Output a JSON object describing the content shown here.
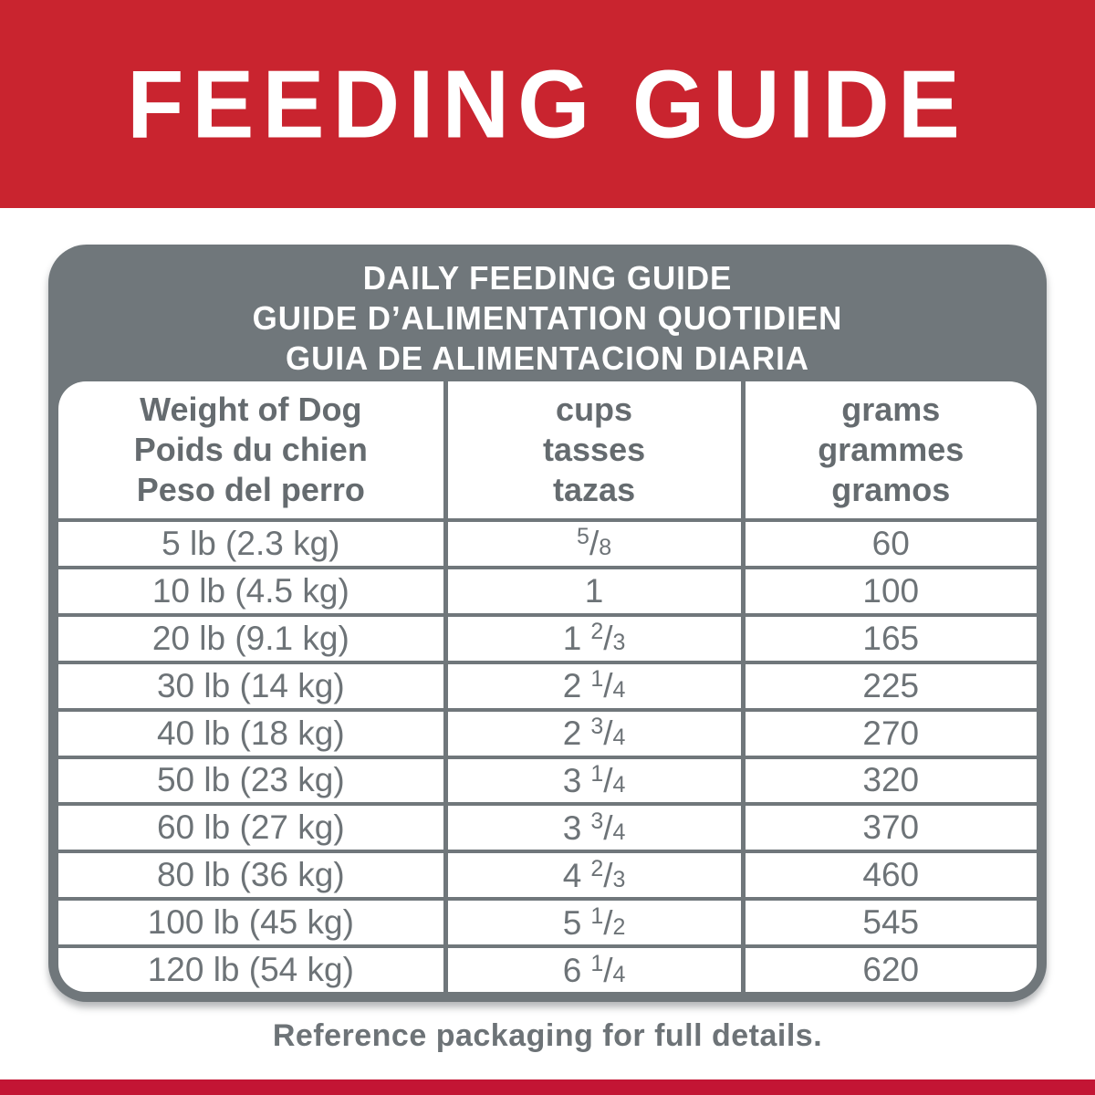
{
  "page": {
    "banner_title": "FEEDING GUIDE",
    "footer_note": "Reference packaging for full details."
  },
  "colors": {
    "banner_red": "#c9242f",
    "bottom_bar_red": "#c31534",
    "table_gray": "#70777b",
    "header_text_gray": "#656b6f",
    "data_text_gray": "#6d7377"
  },
  "table": {
    "title_lines": [
      "DAILY FEEDING GUIDE",
      "GUIDE D’ALIMENTATION QUOTIDIEN",
      "GUIA DE ALIMENTACION DIARIA"
    ],
    "columns": [
      {
        "id": "weight",
        "lines": [
          "Weight of Dog",
          "Poids du chien",
          "Peso del perro"
        ]
      },
      {
        "id": "cups",
        "lines": [
          "cups",
          "tasses",
          "tazas"
        ]
      },
      {
        "id": "grams",
        "lines": [
          "grams",
          "grammes",
          "gramos"
        ]
      }
    ],
    "rows": [
      {
        "weight": "5 lb (2.3 kg)",
        "cups": {
          "whole": "",
          "num": "5",
          "den": "8"
        },
        "grams": "60"
      },
      {
        "weight": "10 lb (4.5 kg)",
        "cups": {
          "whole": "1",
          "num": "",
          "den": ""
        },
        "grams": "100"
      },
      {
        "weight": "20 lb (9.1 kg)",
        "cups": {
          "whole": "1",
          "num": "2",
          "den": "3"
        },
        "grams": "165"
      },
      {
        "weight": "30 lb (14 kg)",
        "cups": {
          "whole": "2",
          "num": "1",
          "den": "4"
        },
        "grams": "225"
      },
      {
        "weight": "40 lb (18 kg)",
        "cups": {
          "whole": "2",
          "num": "3",
          "den": "4"
        },
        "grams": "270"
      },
      {
        "weight": "50 lb (23 kg)",
        "cups": {
          "whole": "3",
          "num": "1",
          "den": "4"
        },
        "grams": "320"
      },
      {
        "weight": "60 lb (27 kg)",
        "cups": {
          "whole": "3",
          "num": "3",
          "den": "4"
        },
        "grams": "370"
      },
      {
        "weight": "80 lb (36 kg)",
        "cups": {
          "whole": "4",
          "num": "2",
          "den": "3"
        },
        "grams": "460"
      },
      {
        "weight": "100 lb (45 kg)",
        "cups": {
          "whole": "5",
          "num": "1",
          "den": "2"
        },
        "grams": "545"
      },
      {
        "weight": "120 lb (54 kg)",
        "cups": {
          "whole": "6",
          "num": "1",
          "den": "4"
        },
        "grams": "620"
      }
    ]
  }
}
